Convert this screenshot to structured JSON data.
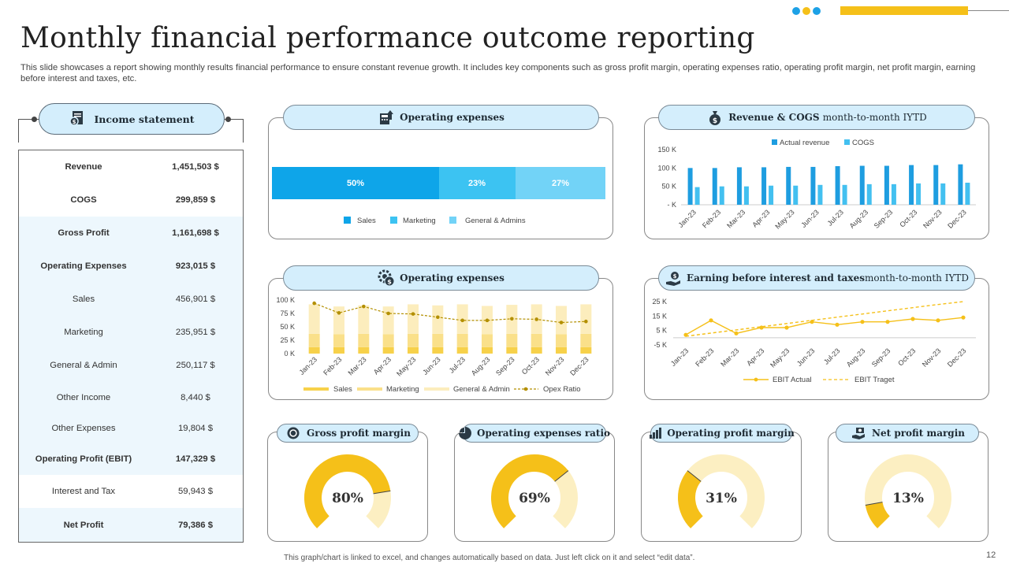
{
  "title": "Monthly financial performance outcome reporting",
  "subtitle": "This slide showcases a report showing monthly results financial performance to ensure constant revenue growth. It includes key components such as gross profit margin, operating expenses ratio, operating profit margin, net profit margin, earning before interest and taxes, etc.",
  "colors": {
    "accent": "#f5c019",
    "dot1": "#1da1e6",
    "dot2": "#f5c019",
    "dot3": "#1da1e6",
    "pill": "#d4eefc"
  },
  "income_statement": {
    "heading": "Income statement",
    "rows": [
      {
        "label": "Revenue",
        "value": "1,451,503 $",
        "bold": true
      },
      {
        "label": "COGS",
        "value": "299,859 $",
        "bold": true
      },
      {
        "label": "Gross Profit",
        "value": "1,161,698 $",
        "bold": true
      },
      {
        "label": "Operating Expenses",
        "value": "923,015 $",
        "bold": true
      },
      {
        "label": "Sales",
        "value": "456,901 $",
        "bold": false
      },
      {
        "label": "Marketing",
        "value": "235,951 $",
        "bold": false
      },
      {
        "label": "General & Admin",
        "value": "250,117 $",
        "bold": false
      },
      {
        "label": "Other Income",
        "value": "8,440 $",
        "bold": false
      },
      {
        "label": "Other Expenses",
        "value": "19,804 $",
        "bold": false
      },
      {
        "label": "Operating Profit (EBIT)",
        "value": "147,329 $",
        "bold": true
      },
      {
        "label": "Interest and Tax",
        "value": "59,943 $",
        "bold": false
      },
      {
        "label": "Net Profit",
        "value": "79,386 $",
        "bold": true
      }
    ]
  },
  "panels": {
    "opex_share_title": "Operating expenses",
    "revenue_cogs_title": "Revenue & COGS",
    "revenue_cogs_suffix": "month-to-month IYTD",
    "opex_monthly_title": "Operating expenses",
    "ebit_title": "Earning before interest and taxes",
    "ebit_suffix": "month-to-month IYTD",
    "gross_title": "Gross profit margin",
    "opex_ratio_title": "Operating expenses ratio",
    "op_margin_title": "Operating profit margin",
    "net_margin_title": "Net profit margin"
  },
  "chart_data": [
    {
      "id": "opex_share",
      "type": "bar",
      "stacked": true,
      "orientation": "horizontal",
      "series": [
        {
          "name": "Sales",
          "value": 50,
          "label": "50%",
          "color": "#0ea5e9"
        },
        {
          "name": "Marketing",
          "value": 23,
          "label": "23%",
          "color": "#3cc3f2"
        },
        {
          "name": "General & Admins",
          "value": 27,
          "label": "27%",
          "color": "#72d3f7"
        }
      ],
      "legend_position": "bottom"
    },
    {
      "id": "revenue_cogs",
      "type": "bar",
      "categories": [
        "Jan-23",
        "Feb-23",
        "Mar-23",
        "Apr-23",
        "May-23",
        "Jun-23",
        "Jul-23",
        "Aug-23",
        "Sep-23",
        "Oct-23",
        "Nov-23",
        "Dec-23"
      ],
      "series": [
        {
          "name": "Actual revenue",
          "color": "#1e9de0",
          "values": [
            100,
            100,
            102,
            102,
            103,
            103,
            105,
            106,
            106,
            108,
            108,
            110
          ]
        },
        {
          "name": "COGS",
          "color": "#43c0f0",
          "values": [
            48,
            50,
            50,
            52,
            52,
            54,
            54,
            56,
            56,
            58,
            58,
            60
          ]
        }
      ],
      "yticks": [
        "150 K",
        "100 K",
        "50 K",
        "- K"
      ],
      "ylim": [
        0,
        150
      ],
      "legend_position": "top"
    },
    {
      "id": "opex_monthly",
      "type": "bar",
      "stacked": true,
      "categories": [
        "Jan-23",
        "Feb-23",
        "Mar-23",
        "Apr-23",
        "May-23",
        "Jun-23",
        "Jul-23",
        "Aug-23",
        "Sep-23",
        "Oct-23",
        "Nov-23",
        "Dec-23"
      ],
      "series": [
        {
          "name": "Sales",
          "color": "#f7d14a",
          "values": [
            12,
            12,
            12,
            12,
            12,
            12,
            12,
            12,
            12,
            12,
            12,
            12
          ]
        },
        {
          "name": "Marketing",
          "color": "#fae08a",
          "values": [
            25,
            24,
            25,
            24,
            25,
            25,
            25,
            24,
            25,
            25,
            24,
            25
          ]
        },
        {
          "name": "General & Admin",
          "color": "#fcedbd",
          "values": [
            55,
            52,
            53,
            52,
            55,
            53,
            55,
            53,
            54,
            55,
            53,
            55
          ]
        }
      ],
      "line": {
        "name": "Opex Ratio",
        "color": "#b38f00",
        "values": [
          94,
          76,
          88,
          75,
          74,
          68,
          62,
          62,
          65,
          64,
          58,
          60
        ]
      },
      "yticks": [
        "100 K",
        "75 K",
        "50 K",
        "25 K",
        "0 K"
      ],
      "ylim": [
        0,
        100
      ],
      "legend_position": "bottom"
    },
    {
      "id": "ebit",
      "type": "line",
      "categories": [
        "Jan-23",
        "Feb-23",
        "Mar-23",
        "Apr-23",
        "May-23",
        "Jun-23",
        "Jul-23",
        "Aug-23",
        "Sep-23",
        "Oct-23",
        "Nov-23",
        "Dec-23"
      ],
      "series": [
        {
          "name": "EBIT Actual",
          "color": "#f5c019",
          "values": [
            2,
            12,
            3,
            7,
            7,
            11,
            9,
            11,
            11,
            13,
            12,
            14
          ]
        },
        {
          "name": "EBIT Traget",
          "color": "#f5c019",
          "dashed": true,
          "values": [
            1,
            3.2,
            5.4,
            7.6,
            9.8,
            12,
            14.2,
            16.4,
            18.6,
            20.8,
            23,
            25
          ]
        }
      ],
      "yticks": [
        "25 K",
        "15 K",
        "5 K",
        "-5 K"
      ],
      "ylim": [
        -5,
        25
      ],
      "legend_position": "bottom"
    },
    {
      "id": "gross_margin",
      "type": "pie",
      "donut": true,
      "value": 80,
      "label": "80%"
    },
    {
      "id": "opex_ratio",
      "type": "pie",
      "donut": true,
      "value": 69,
      "label": "69%"
    },
    {
      "id": "op_margin",
      "type": "pie",
      "donut": true,
      "value": 31,
      "label": "31%"
    },
    {
      "id": "net_margin",
      "type": "pie",
      "donut": true,
      "value": 13,
      "label": "13%"
    }
  ],
  "footer": "This graph/chart is linked to excel, and changes automatically based on data. Just left click on it and select “edit data”.",
  "page_number": "12"
}
